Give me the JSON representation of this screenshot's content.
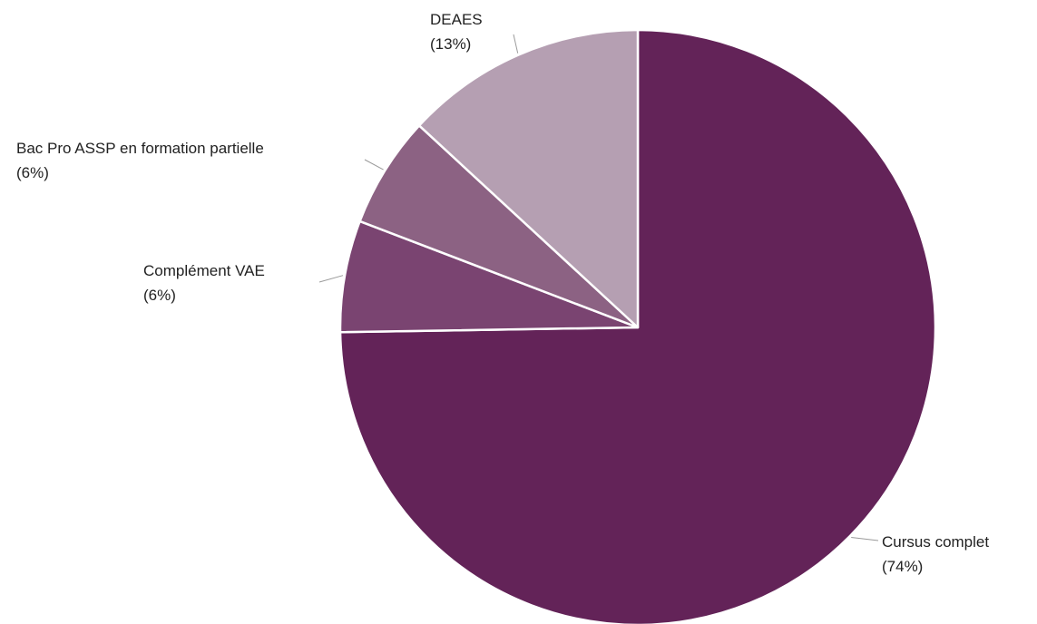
{
  "chart_data": {
    "type": "pie",
    "title": "",
    "start_angle_deg": 0,
    "direction": "clockwise",
    "slices": [
      {
        "label": "Cursus complet",
        "percent_label": "(74%)",
        "value": 74,
        "color": "#632358"
      },
      {
        "label": "Complément VAE",
        "percent_label": "(6%)",
        "value": 6,
        "color": "#7a4471"
      },
      {
        "label": "Bac Pro ASSP en formation partielle",
        "percent_label": "(6%)",
        "value": 6,
        "color": "#8c6283"
      },
      {
        "label": "DEAES",
        "percent_label": "(13%)",
        "value": 13,
        "color": "#b59fb2"
      }
    ],
    "legend": "none"
  }
}
